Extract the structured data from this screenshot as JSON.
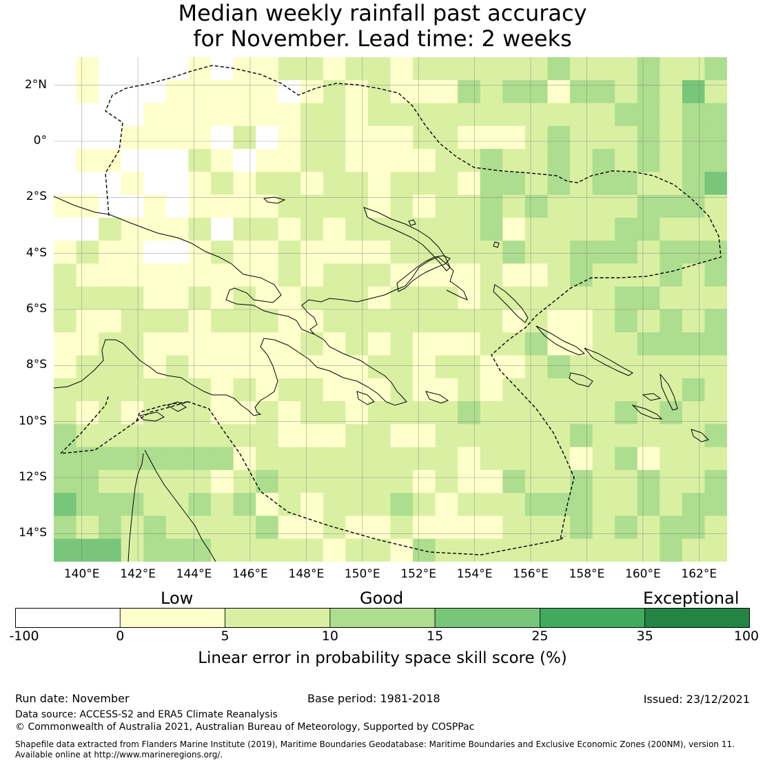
{
  "title": {
    "line1": "Median weekly rainfall past accuracy",
    "line2": "for November. Lead time: 2 weeks"
  },
  "map": {
    "lon_range": [
      139,
      163
    ],
    "lat_range": [
      -15,
      3
    ],
    "lat_labels": [
      "2°N",
      "0°",
      "2°S",
      "4°S",
      "6°S",
      "8°S",
      "10°S",
      "12°S",
      "14°S"
    ],
    "lat_values": [
      2,
      0,
      -2,
      -4,
      -6,
      -8,
      -10,
      -12,
      -14
    ],
    "lon_labels": [
      "140°E",
      "142°E",
      "144°E",
      "146°E",
      "148°E",
      "150°E",
      "152°E",
      "154°E",
      "156°E",
      "158°E",
      "160°E",
      "162°E"
    ],
    "lon_values": [
      140,
      142,
      144,
      146,
      148,
      150,
      152,
      154,
      156,
      158,
      160,
      162
    ]
  },
  "colorbar": {
    "categories": {
      "low": "Low",
      "good": "Good",
      "exceptional": "Exceptional"
    },
    "ticks": [
      "-100",
      "0",
      "5",
      "10",
      "15",
      "25",
      "35",
      "100"
    ],
    "colors": [
      "#ffffff",
      "#ffffcc",
      "#d9f0a3",
      "#addd8e",
      "#78c679",
      "#41ab5d",
      "#238443"
    ],
    "label": "Linear error in probability space skill score (%)"
  },
  "footer": {
    "run_date": "Run date: November",
    "base_period": "Base period: 1981-2018",
    "issued": "Issued: 23/12/2021",
    "data_source": "Data source: ACCESS-S2 and ERA5 Climate Reanalysis",
    "copyright": "© Commonwealth of Australia 2021, Australian Bureau of Meteorology, Supported by COSPPac",
    "shapefile_line1": "Shapefile data extracted from Flanders Marine Institute (2019), Maritime Boundaries Geodatabase: Maritime Boundaries and Exclusive Economic Zones (200NM), version 11.",
    "shapefile_line2": "Available online at http://www.marineregions.org/."
  }
}
